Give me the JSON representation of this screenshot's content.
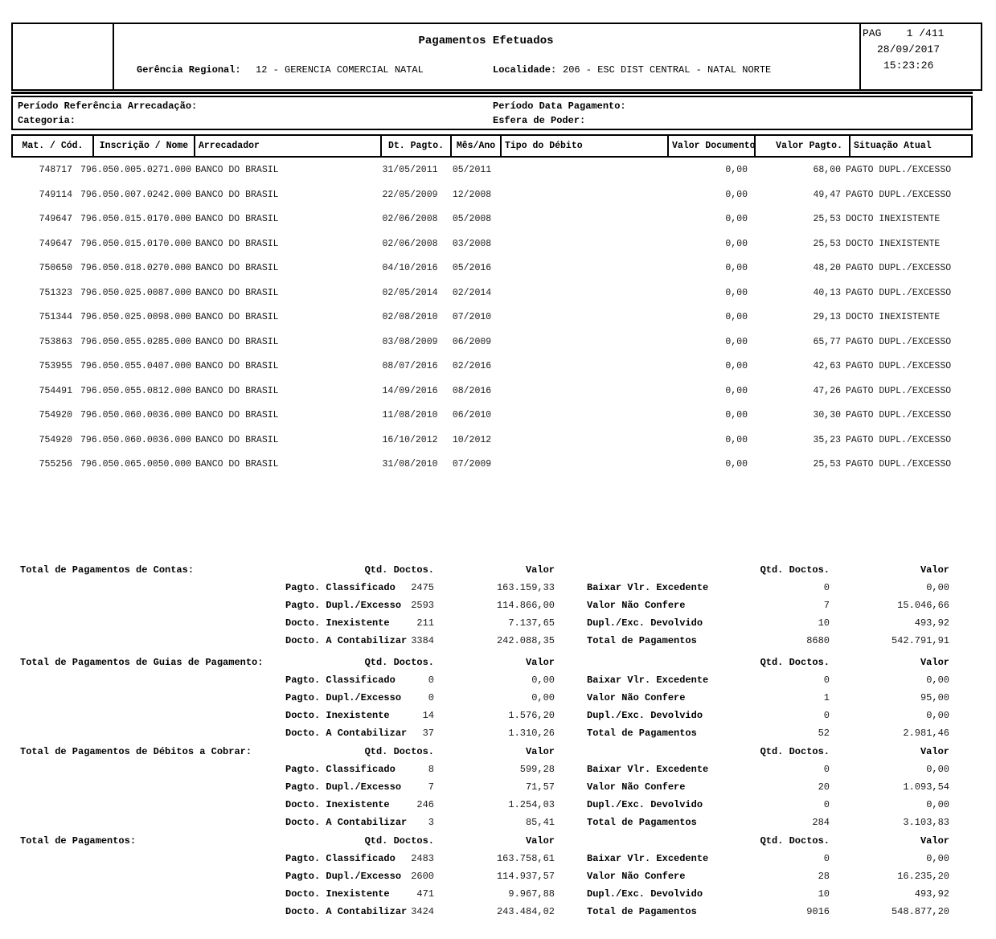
{
  "header": {
    "title": "Pagamentos Efetuados",
    "gerencia_label": "Gerência Regional:",
    "gerencia_value": "12 - GERENCIA COMERCIAL NATAL",
    "localidade_label": "Localidade:",
    "localidade_value": "206 - ESC DIST CENTRAL - NATAL NORTE",
    "page_line": "PAG    1 /411",
    "date": "28/09/2017",
    "time": "15:23:26"
  },
  "filters": {
    "periodo_referencia_label": "Período Referência Arrecadação:",
    "categoria_label": "Categoria:",
    "periodo_pagamento_label": "Período Data Pagamento:",
    "esfera_label": "Esfera de Poder:"
  },
  "table": {
    "columns": [
      "Mat. / Cód.",
      "Inscrição / Nome",
      "Arrecadador",
      "Dt. Pagto.",
      "Mês/Ano",
      "Tipo do Débito",
      "Valor Documento",
      "Valor Pagto.",
      "Situação Atual"
    ],
    "rows": [
      {
        "mat": "748717",
        "inscricao": "796.050.005.0271.000",
        "arrecadador": "BANCO DO BRASIL",
        "dt_pagto": "31/05/2011",
        "mes_ano": "05/2011",
        "tipo_debito": "",
        "valor_documento": "0,00",
        "valor_pagto": "68,00",
        "situacao": "PAGTO DUPL./EXCESSO"
      },
      {
        "mat": "749114",
        "inscricao": "796.050.007.0242.000",
        "arrecadador": "BANCO DO BRASIL",
        "dt_pagto": "22/05/2009",
        "mes_ano": "12/2008",
        "tipo_debito": "",
        "valor_documento": "0,00",
        "valor_pagto": "49,47",
        "situacao": "PAGTO DUPL./EXCESSO"
      },
      {
        "mat": "749647",
        "inscricao": "796.050.015.0170.000",
        "arrecadador": "BANCO DO BRASIL",
        "dt_pagto": "02/06/2008",
        "mes_ano": "05/2008",
        "tipo_debito": "",
        "valor_documento": "0,00",
        "valor_pagto": "25,53",
        "situacao": "DOCTO INEXISTENTE"
      },
      {
        "mat": "749647",
        "inscricao": "796.050.015.0170.000",
        "arrecadador": "BANCO DO BRASIL",
        "dt_pagto": "02/06/2008",
        "mes_ano": "03/2008",
        "tipo_debito": "",
        "valor_documento": "0,00",
        "valor_pagto": "25,53",
        "situacao": "DOCTO INEXISTENTE"
      },
      {
        "mat": "750650",
        "inscricao": "796.050.018.0270.000",
        "arrecadador": "BANCO DO BRASIL",
        "dt_pagto": "04/10/2016",
        "mes_ano": "05/2016",
        "tipo_debito": "",
        "valor_documento": "0,00",
        "valor_pagto": "48,20",
        "situacao": "PAGTO DUPL./EXCESSO"
      },
      {
        "mat": "751323",
        "inscricao": "796.050.025.0087.000",
        "arrecadador": "BANCO DO BRASIL",
        "dt_pagto": "02/05/2014",
        "mes_ano": "02/2014",
        "tipo_debito": "",
        "valor_documento": "0,00",
        "valor_pagto": "40,13",
        "situacao": "PAGTO DUPL./EXCESSO"
      },
      {
        "mat": "751344",
        "inscricao": "796.050.025.0098.000",
        "arrecadador": "BANCO DO BRASIL",
        "dt_pagto": "02/08/2010",
        "mes_ano": "07/2010",
        "tipo_debito": "",
        "valor_documento": "0,00",
        "valor_pagto": "29,13",
        "situacao": "DOCTO INEXISTENTE"
      },
      {
        "mat": "753863",
        "inscricao": "796.050.055.0285.000",
        "arrecadador": "BANCO DO BRASIL",
        "dt_pagto": "03/08/2009",
        "mes_ano": "06/2009",
        "tipo_debito": "",
        "valor_documento": "0,00",
        "valor_pagto": "65,77",
        "situacao": "PAGTO DUPL./EXCESSO"
      },
      {
        "mat": "753955",
        "inscricao": "796.050.055.0407.000",
        "arrecadador": "BANCO DO BRASIL",
        "dt_pagto": "08/07/2016",
        "mes_ano": "02/2016",
        "tipo_debito": "",
        "valor_documento": "0,00",
        "valor_pagto": "42,63",
        "situacao": "PAGTO DUPL./EXCESSO"
      },
      {
        "mat": "754491",
        "inscricao": "796.050.055.0812.000",
        "arrecadador": "BANCO DO BRASIL",
        "dt_pagto": "14/09/2016",
        "mes_ano": "08/2016",
        "tipo_debito": "",
        "valor_documento": "0,00",
        "valor_pagto": "47,26",
        "situacao": "PAGTO DUPL./EXCESSO"
      },
      {
        "mat": "754920",
        "inscricao": "796.050.060.0036.000",
        "arrecadador": "BANCO DO BRASIL",
        "dt_pagto": "11/08/2010",
        "mes_ano": "06/2010",
        "tipo_debito": "",
        "valor_documento": "0,00",
        "valor_pagto": "30,30",
        "situacao": "PAGTO DUPL./EXCESSO"
      },
      {
        "mat": "754920",
        "inscricao": "796.050.060.0036.000",
        "arrecadador": "BANCO DO BRASIL",
        "dt_pagto": "16/10/2012",
        "mes_ano": "10/2012",
        "tipo_debito": "",
        "valor_documento": "0,00",
        "valor_pagto": "35,23",
        "situacao": "PAGTO DUPL./EXCESSO"
      },
      {
        "mat": "755256",
        "inscricao": "796.050.065.0050.000",
        "arrecadador": "BANCO DO BRASIL",
        "dt_pagto": "31/08/2010",
        "mes_ano": "07/2009",
        "tipo_debito": "",
        "valor_documento": "0,00",
        "valor_pagto": "25,53",
        "situacao": "PAGTO DUPL./EXCESSO"
      }
    ]
  },
  "summary": {
    "qtd_header": "Qtd. Doctos.",
    "valor_header": "Valor",
    "blocks": [
      {
        "title": "Total de Pagamentos de Contas:",
        "left": [
          {
            "label": "Pagto. Classificado",
            "qtd": "2475",
            "valor": "163.159,33"
          },
          {
            "label": "Pagto. Dupl./Excesso",
            "qtd": "2593",
            "valor": "114.866,00"
          },
          {
            "label": "Docto. Inexistente",
            "qtd": "211",
            "valor": "7.137,65"
          },
          {
            "label": "Docto. A Contabilizar",
            "qtd": "3384",
            "valor": "242.088,35"
          }
        ],
        "right": [
          {
            "label": "Baixar Vlr. Excedente",
            "qtd": "0",
            "valor": "0,00"
          },
          {
            "label": "Valor Não Confere",
            "qtd": "7",
            "valor": "15.046,66"
          },
          {
            "label": "Dupl./Exc. Devolvido",
            "qtd": "10",
            "valor": "493,92"
          },
          {
            "label": "Total de Pagamentos",
            "qtd": "8680",
            "valor": "542.791,91"
          }
        ]
      },
      {
        "title": "Total de Pagamentos de Guias de Pagamento:",
        "left": [
          {
            "label": "Pagto. Classificado",
            "qtd": "0",
            "valor": "0,00"
          },
          {
            "label": "Pagto. Dupl./Excesso",
            "qtd": "0",
            "valor": "0,00"
          },
          {
            "label": "Docto. Inexistente",
            "qtd": "14",
            "valor": "1.576,20"
          },
          {
            "label": "Docto. A Contabilizar",
            "qtd": "37",
            "valor": "1.310,26"
          }
        ],
        "right": [
          {
            "label": "Baixar Vlr. Excedente",
            "qtd": "0",
            "valor": "0,00"
          },
          {
            "label": "Valor Não Confere",
            "qtd": "1",
            "valor": "95,00"
          },
          {
            "label": "Dupl./Exc. Devolvido",
            "qtd": "0",
            "valor": "0,00"
          },
          {
            "label": "Total de Pagamentos",
            "qtd": "52",
            "valor": "2.981,46"
          }
        ]
      },
      {
        "title": "Total de Pagamentos de Débitos a Cobrar:",
        "left": [
          {
            "label": "Pagto. Classificado",
            "qtd": "8",
            "valor": "599,28"
          },
          {
            "label": "Pagto. Dupl./Excesso",
            "qtd": "7",
            "valor": "71,57"
          },
          {
            "label": "Docto. Inexistente",
            "qtd": "246",
            "valor": "1.254,03"
          },
          {
            "label": "Docto. A Contabilizar",
            "qtd": "3",
            "valor": "85,41"
          }
        ],
        "right": [
          {
            "label": "Baixar Vlr. Excedente",
            "qtd": "0",
            "valor": "0,00"
          },
          {
            "label": "Valor Não Confere",
            "qtd": "20",
            "valor": "1.093,54"
          },
          {
            "label": "Dupl./Exc. Devolvido",
            "qtd": "0",
            "valor": "0,00"
          },
          {
            "label": "Total de Pagamentos",
            "qtd": "284",
            "valor": "3.103,83"
          }
        ]
      },
      {
        "title": "Total de Pagamentos:",
        "left": [
          {
            "label": "Pagto. Classificado",
            "qtd": "2483",
            "valor": "163.758,61"
          },
          {
            "label": "Pagto. Dupl./Excesso",
            "qtd": "2600",
            "valor": "114.937,57"
          },
          {
            "label": "Docto. Inexistente",
            "qtd": "471",
            "valor": "9.967,88"
          },
          {
            "label": "Docto. A Contabilizar",
            "qtd": "3424",
            "valor": "243.484,02"
          }
        ],
        "right": [
          {
            "label": "Baixar Vlr. Excedente",
            "qtd": "0",
            "valor": "0,00"
          },
          {
            "label": "Valor Não Confere",
            "qtd": "28",
            "valor": "16.235,20"
          },
          {
            "label": "Dupl./Exc. Devolvido",
            "qtd": "10",
            "valor": "493,92"
          },
          {
            "label": "Total de Pagamentos",
            "qtd": "9016",
            "valor": "548.877,20"
          }
        ]
      }
    ]
  }
}
